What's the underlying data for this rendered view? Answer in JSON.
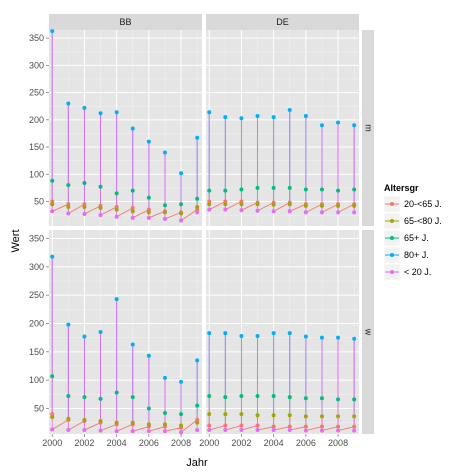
{
  "chart_data": {
    "type": "line",
    "xlabel": "Jahr",
    "ylabel": "Wert",
    "xlim": [
      1999.8,
      2009.3
    ],
    "ylim": [
      5,
      365
    ],
    "x_ticks": [
      "2000",
      "2002",
      "2004",
      "2006",
      "2008"
    ],
    "y_ticks": [
      "50",
      "100",
      "150",
      "200",
      "250",
      "300",
      "350"
    ],
    "facet_columns": [
      "BB",
      "DE"
    ],
    "facet_rows": [
      "m",
      "w"
    ],
    "legend_title": "Altersgr",
    "legend_position": "right",
    "grid": true,
    "series": [
      {
        "name": "20-<65 J.",
        "color": "#F8766D"
      },
      {
        "name": "65-<80 J.",
        "color": "#A3A500"
      },
      {
        "name": "65+ J.",
        "color": "#00BF7D"
      },
      {
        "name": "80+ J.",
        "color": "#00B0F6"
      },
      {
        "name": "< 20 J.",
        "color": "#E76BF3"
      }
    ],
    "panels": [
      {
        "col": "BB",
        "row": "m",
        "x": [
          2000,
          2001,
          2002,
          2003,
          2004,
          2005,
          2006,
          2007,
          2008,
          2009
        ],
        "values": {
          "20-<65 J.": [
            50,
            45,
            45,
            42,
            40,
            38,
            35,
            32,
            30,
            35
          ],
          "65-<80 J.": [
            45,
            40,
            40,
            38,
            35,
            32,
            30,
            30,
            28,
            40
          ],
          "65+ J.": [
            88,
            80,
            84,
            77,
            65,
            70,
            57,
            43,
            45,
            55
          ],
          "80+ J.": [
            363,
            230,
            222,
            212,
            214,
            184,
            160,
            140,
            102,
            167
          ],
          "< 20 J.": [
            32,
            28,
            27,
            25,
            22,
            20,
            20,
            18,
            15,
            30
          ]
        }
      },
      {
        "col": "DE",
        "row": "m",
        "x": [
          2000,
          2001,
          2002,
          2003,
          2004,
          2005,
          2006,
          2007,
          2008,
          2009
        ],
        "values": {
          "20-<65 J.": [
            50,
            50,
            50,
            48,
            48,
            48,
            45,
            45,
            45,
            45
          ],
          "65-<80 J.": [
            45,
            45,
            45,
            45,
            44,
            45,
            42,
            42,
            42,
            42
          ],
          "65+ J.": [
            70,
            70,
            72,
            75,
            75,
            75,
            72,
            72,
            70,
            72
          ],
          "80+ J.": [
            214,
            205,
            203,
            207,
            205,
            218,
            207,
            190,
            195,
            190
          ],
          "< 20 J.": [
            35,
            35,
            34,
            33,
            32,
            32,
            30,
            30,
            30,
            30
          ]
        }
      },
      {
        "col": "BB",
        "row": "w",
        "x": [
          2000,
          2001,
          2002,
          2003,
          2004,
          2005,
          2006,
          2007,
          2008,
          2009
        ],
        "values": {
          "20-<65 J.": [
            40,
            30,
            28,
            25,
            22,
            22,
            18,
            18,
            16,
            30
          ],
          "65-<80 J.": [
            35,
            32,
            30,
            28,
            25,
            25,
            22,
            22,
            20,
            25
          ],
          "65+ J.": [
            107,
            72,
            70,
            67,
            78,
            70,
            50,
            42,
            40,
            55
          ],
          "80+ J.": [
            318,
            198,
            177,
            185,
            243,
            163,
            143,
            104,
            97,
            135
          ],
          "< 20 J.": [
            13,
            12,
            12,
            11,
            10,
            10,
            10,
            10,
            8,
            12
          ]
        }
      },
      {
        "col": "DE",
        "row": "w",
        "x": [
          2000,
          2001,
          2002,
          2003,
          2004,
          2005,
          2006,
          2007,
          2008,
          2009
        ],
        "values": {
          "20-<65 J.": [
            20,
            20,
            20,
            20,
            18,
            18,
            18,
            18,
            18,
            18
          ],
          "65-<80 J.": [
            40,
            40,
            40,
            38,
            38,
            38,
            36,
            36,
            36,
            36
          ],
          "65+ J.": [
            72,
            70,
            72,
            72,
            72,
            70,
            68,
            68,
            66,
            66
          ],
          "80+ J.": [
            183,
            183,
            178,
            178,
            183,
            183,
            177,
            175,
            175,
            173
          ],
          "< 20 J.": [
            12,
            12,
            12,
            12,
            12,
            12,
            11,
            11,
            11,
            11
          ]
        }
      }
    ]
  }
}
